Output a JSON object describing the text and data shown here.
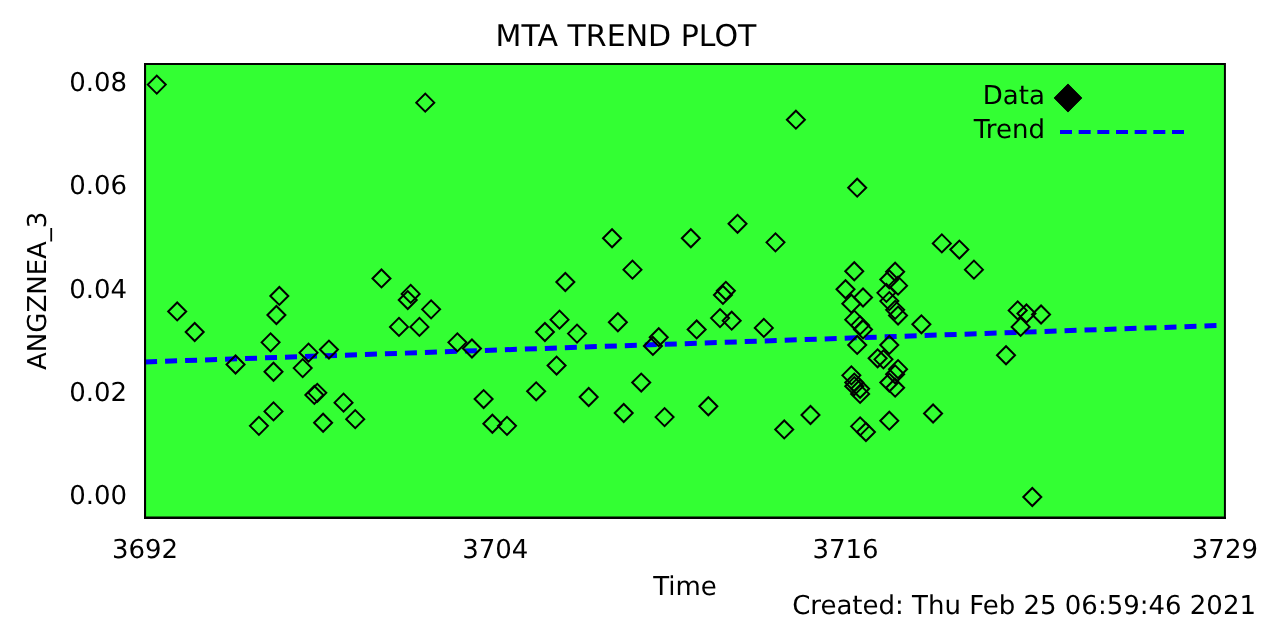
{
  "chart_data": {
    "type": "scatter",
    "title": "MTA TREND PLOT",
    "xlabel": "Time",
    "ylabel": "ANGZNEA_3",
    "annotations": [
      "Created: Thu Feb 25 06:59:46 2021"
    ],
    "xlim": [
      3692,
      3729
    ],
    "xticks": [
      3692,
      3704,
      3716,
      3729
    ],
    "ylim": [
      -0.004,
      0.084
    ],
    "yticks": [
      {
        "value": 0,
        "label": "0.00"
      },
      {
        "value": 0.02,
        "label": "0.02"
      },
      {
        "value": 0.04,
        "label": "0.04"
      },
      {
        "value": 0.06,
        "label": "0.06"
      },
      {
        "value": 0.08,
        "label": "0.08"
      }
    ],
    "grid": false,
    "legend": "top right",
    "series": [
      {
        "name": "Data",
        "type": "scatter",
        "marker": "diamond",
        "color": "#000000",
        "x": [
          3692.4,
          3701.6,
          3693.1,
          3693.7,
          3695.1,
          3696.6,
          3696.5,
          3696.3,
          3696.4,
          3696.4,
          3695.9,
          3697.6,
          3697.4,
          3697.8,
          3697.9,
          3698.3,
          3698.8,
          3698.1,
          3699.2,
          3700.1,
          3701.1,
          3701.0,
          3700.7,
          3701.4,
          3701.8,
          3702.7,
          3703.2,
          3703.6,
          3703.9,
          3704.4,
          3714.3,
          3716.4,
          3708.0,
          3710.7,
          3712.3,
          3713.6,
          3706.4,
          3708.7,
          3711.9,
          3711.8,
          3706.2,
          3705.7,
          3706.8,
          3708.2,
          3710.9,
          3711.7,
          3712.1,
          3713.2,
          3709.6,
          3709.4,
          3706.1,
          3705.4,
          3707.2,
          3709.0,
          3708.4,
          3709.8,
          3711.3,
          3714.8,
          3713.9,
          3716.3,
          3716.0,
          3716.6,
          3716.2,
          3716.3,
          3716.5,
          3716.6,
          3716.4,
          3717.1,
          3716.2,
          3716.3,
          3716.5,
          3716.3,
          3716.5,
          3716.5,
          3716.7,
          3717.7,
          3717.5,
          3717.8,
          3717.4,
          3717.5,
          3717.7,
          3717.8,
          3717.5,
          3717.3,
          3717.8,
          3717.7,
          3717.5,
          3717.7,
          3717.5,
          3719.0,
          3718.6,
          3719.3,
          3719.9,
          3720.4,
          3721.5,
          3721.9,
          3722.2,
          3722.7,
          3722.0,
          3722.4
        ],
        "values": [
          0.08,
          0.0765,
          0.036,
          0.032,
          0.0257,
          0.039,
          0.0353,
          0.03,
          0.0243,
          0.0166,
          0.0138,
          0.028,
          0.025,
          0.0198,
          0.0202,
          0.0286,
          0.0183,
          0.0144,
          0.0151,
          0.0424,
          0.0394,
          0.0382,
          0.033,
          0.033,
          0.0364,
          0.03,
          0.0288,
          0.019,
          0.0142,
          0.0138,
          0.0732,
          0.06,
          0.0502,
          0.0502,
          0.053,
          0.0494,
          0.0417,
          0.0441,
          0.04,
          0.0392,
          0.0344,
          0.032,
          0.0317,
          0.0339,
          0.0325,
          0.0347,
          0.0342,
          0.0328,
          0.031,
          0.0293,
          0.0255,
          0.0205,
          0.0194,
          0.0222,
          0.0163,
          0.0155,
          0.0176,
          0.0159,
          0.0131,
          0.0438,
          0.0403,
          0.0387,
          0.0375,
          0.0344,
          0.0333,
          0.0325,
          0.0295,
          0.0269,
          0.0236,
          0.0222,
          0.021,
          0.0215,
          0.02,
          0.0137,
          0.0126,
          0.0437,
          0.0422,
          0.041,
          0.0396,
          0.038,
          0.0363,
          0.0352,
          0.0295,
          0.0267,
          0.0248,
          0.0238,
          0.0222,
          0.0212,
          0.0148,
          0.0162,
          0.0335,
          0.0492,
          0.048,
          0.0441,
          0.0275,
          0.0362,
          0.0356,
          0.0354,
          0.033,
          0.0
        ]
      },
      {
        "name": "Trend",
        "type": "line",
        "line_style": "dashed",
        "color": "#0000ff",
        "x": [
          3692,
          3729
        ],
        "values": [
          0.0262,
          0.0333
        ]
      }
    ]
  }
}
